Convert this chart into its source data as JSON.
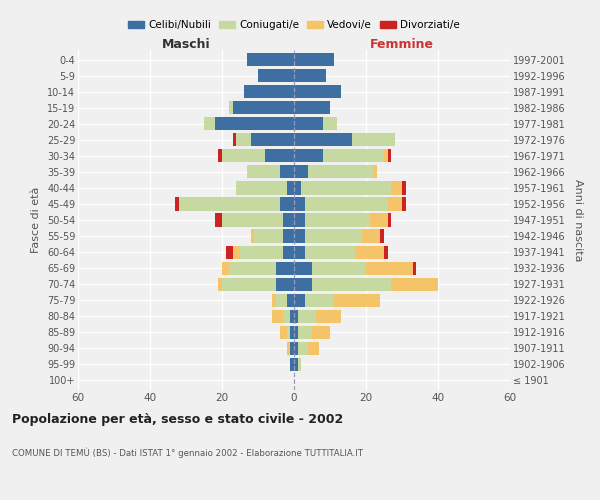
{
  "age_groups": [
    "100+",
    "95-99",
    "90-94",
    "85-89",
    "80-84",
    "75-79",
    "70-74",
    "65-69",
    "60-64",
    "55-59",
    "50-54",
    "45-49",
    "40-44",
    "35-39",
    "30-34",
    "25-29",
    "20-24",
    "15-19",
    "10-14",
    "5-9",
    "0-4"
  ],
  "birth_years": [
    "≤ 1901",
    "1902-1906",
    "1907-1911",
    "1912-1916",
    "1917-1921",
    "1922-1926",
    "1927-1931",
    "1932-1936",
    "1937-1941",
    "1942-1946",
    "1947-1951",
    "1952-1956",
    "1957-1961",
    "1962-1966",
    "1967-1971",
    "1972-1976",
    "1977-1981",
    "1982-1986",
    "1987-1991",
    "1992-1996",
    "1997-2001"
  ],
  "colors": {
    "celibi": "#3e6fa3",
    "coniugati": "#c5d9a0",
    "vedovi": "#f5c469",
    "divorziati": "#cc2222"
  },
  "maschi": {
    "celibi": [
      0,
      1,
      1,
      1,
      1,
      2,
      5,
      5,
      3,
      3,
      3,
      4,
      2,
      4,
      8,
      12,
      22,
      17,
      14,
      10,
      13
    ],
    "coniugati": [
      0,
      0,
      0,
      1,
      2,
      3,
      15,
      13,
      12,
      8,
      17,
      28,
      14,
      9,
      12,
      4,
      3,
      1,
      0,
      0,
      0
    ],
    "vedovi": [
      0,
      0,
      1,
      2,
      3,
      1,
      1,
      2,
      2,
      1,
      0,
      0,
      0,
      0,
      0,
      0,
      0,
      0,
      0,
      0,
      0
    ],
    "divorziati": [
      0,
      0,
      0,
      0,
      0,
      0,
      0,
      0,
      2,
      0,
      2,
      1,
      0,
      0,
      1,
      1,
      0,
      0,
      0,
      0,
      0
    ]
  },
  "femmine": {
    "celibi": [
      0,
      1,
      1,
      1,
      1,
      3,
      5,
      5,
      3,
      3,
      3,
      3,
      2,
      4,
      8,
      16,
      8,
      10,
      13,
      9,
      11
    ],
    "coniugati": [
      0,
      1,
      3,
      4,
      5,
      8,
      22,
      15,
      14,
      16,
      18,
      23,
      25,
      18,
      17,
      12,
      4,
      0,
      0,
      0,
      0
    ],
    "vedovi": [
      0,
      0,
      3,
      5,
      7,
      13,
      13,
      13,
      8,
      5,
      5,
      4,
      3,
      1,
      1,
      0,
      0,
      0,
      0,
      0,
      0
    ],
    "divorziati": [
      0,
      0,
      0,
      0,
      0,
      0,
      0,
      1,
      1,
      1,
      1,
      1,
      1,
      0,
      1,
      0,
      0,
      0,
      0,
      0,
      0
    ]
  },
  "xlim": 60,
  "title": "Popolazione per età, sesso e stato civile - 2002",
  "subtitle": "COMUNE DI TEMÙ (BS) - Dati ISTAT 1° gennaio 2002 - Elaborazione TUTTITALIA.IT",
  "ylabel": "Fasce di età",
  "ylabel_right": "Anni di nascita",
  "xlabel_left": "Maschi",
  "xlabel_right": "Femmine",
  "legend_labels": [
    "Celibi/Nubili",
    "Coniugati/e",
    "Vedovi/e",
    "Divorziati/e"
  ],
  "background_color": "#f0f0f0",
  "grid_color": "#ffffff"
}
